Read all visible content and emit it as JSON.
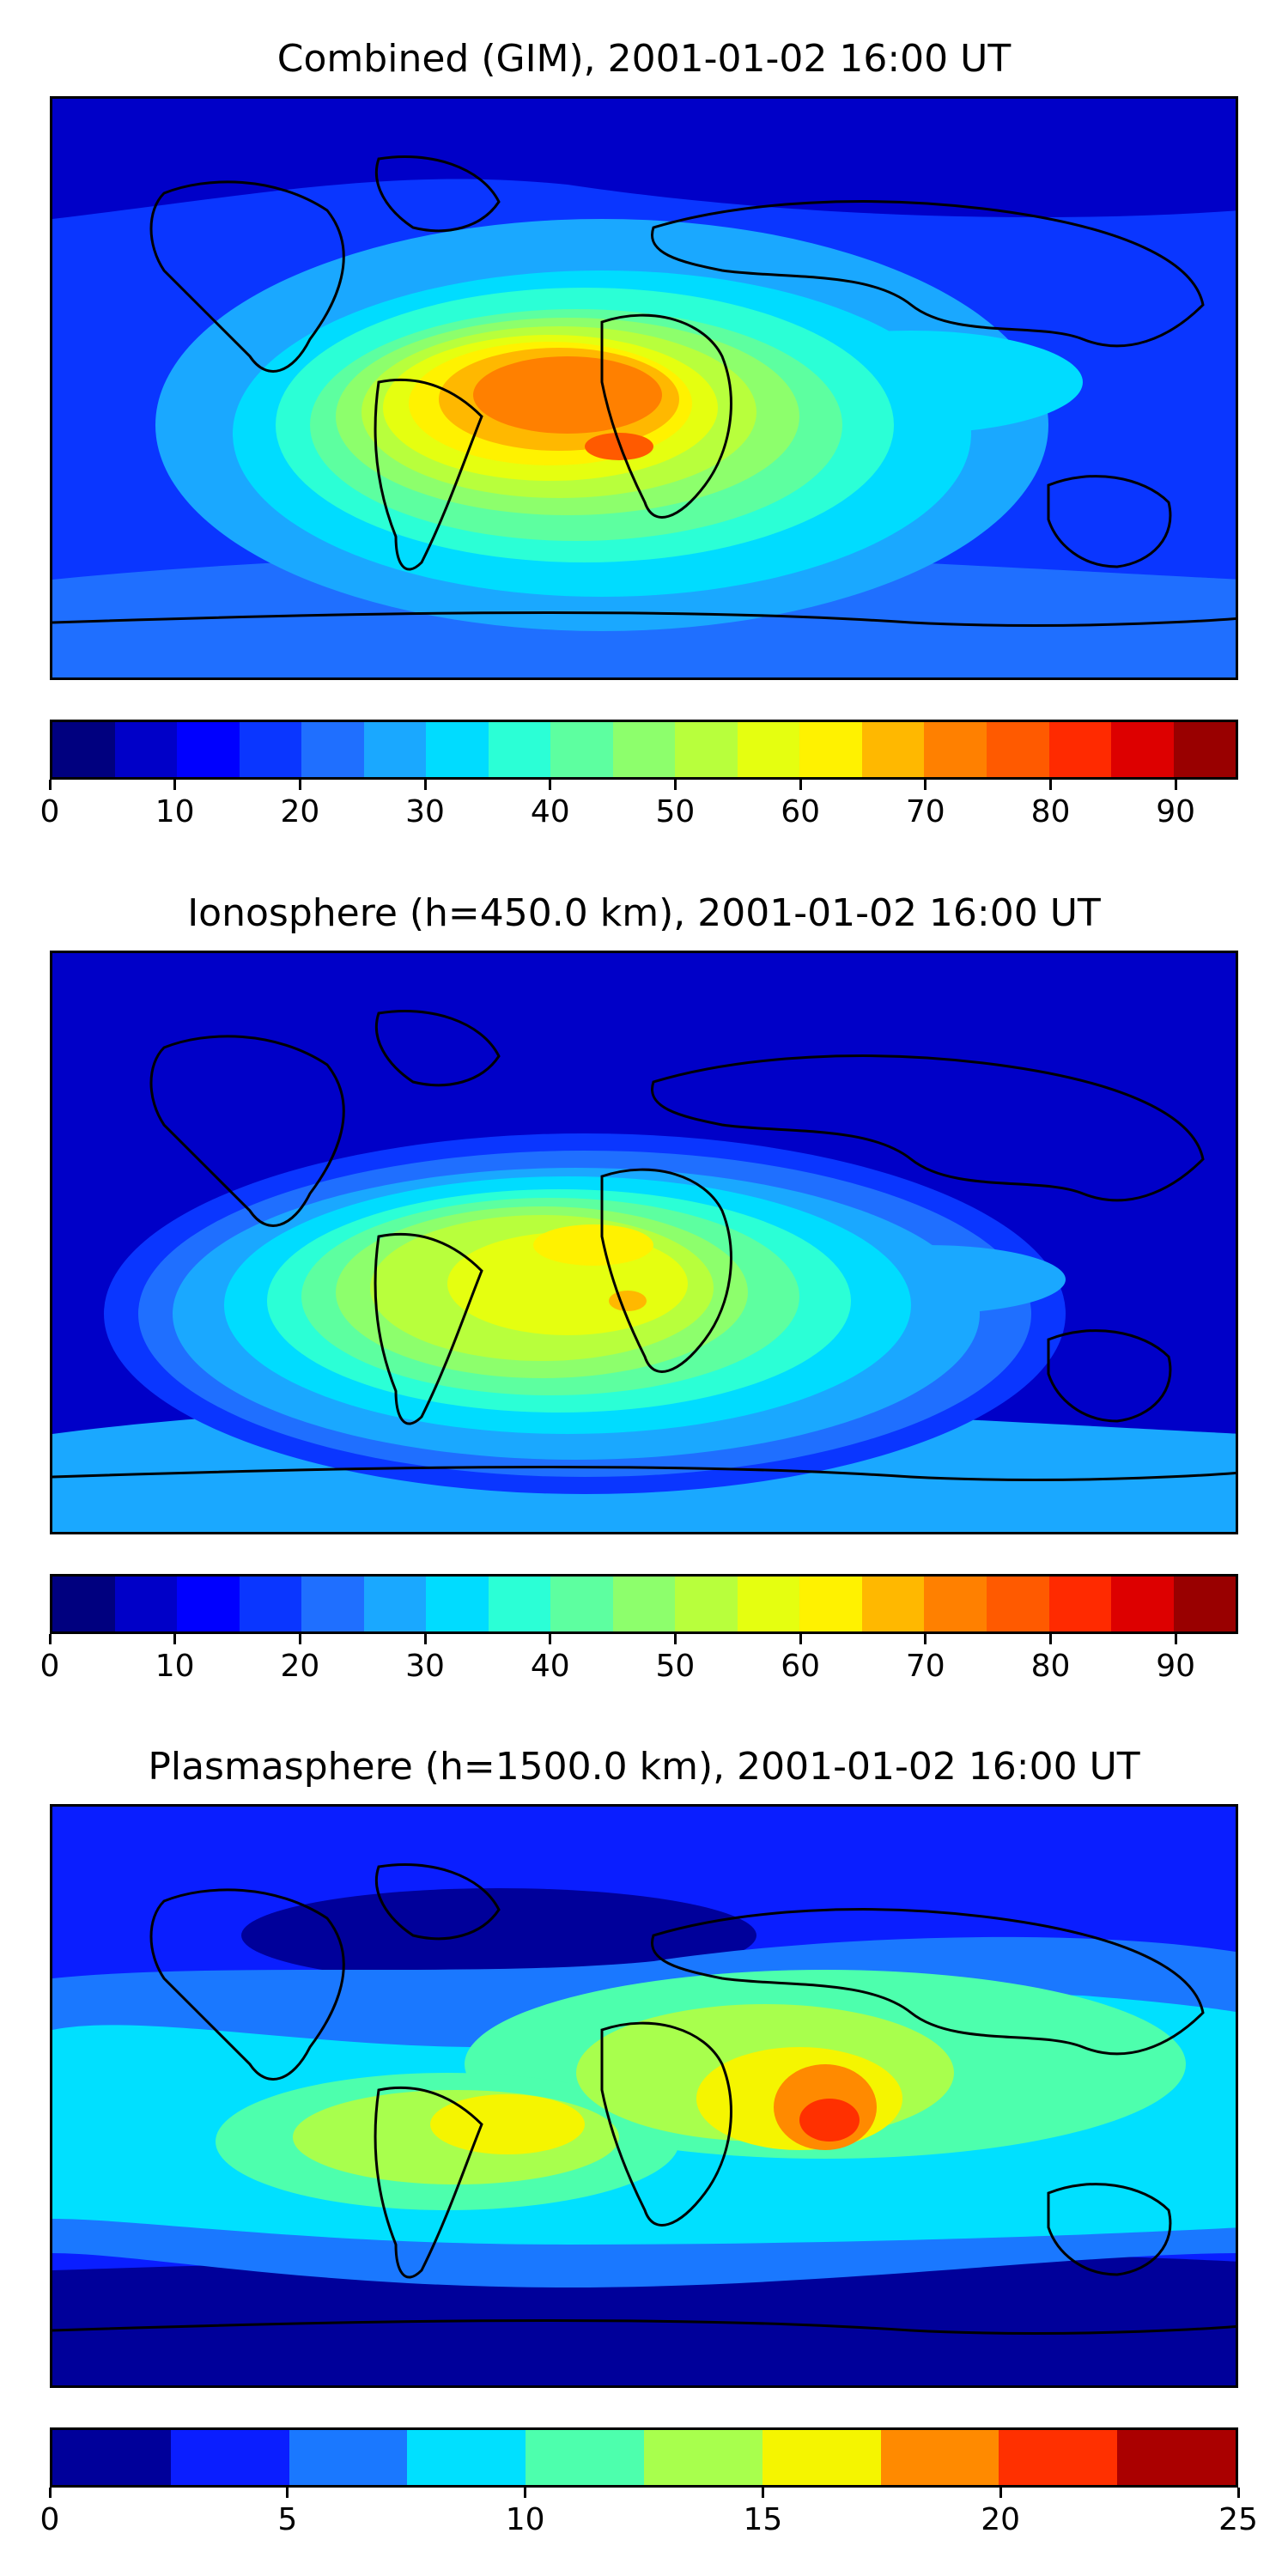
{
  "panels": [
    {
      "id": "combined",
      "title": "Combined (GIM), 2001-01-02 16:00 UT",
      "colorbar": {
        "min": 0,
        "max": 95,
        "step": 5,
        "tick_labels": [
          "0",
          "10",
          "20",
          "30",
          "40",
          "50",
          "60",
          "70",
          "80",
          "90"
        ],
        "tick_values": [
          0,
          10,
          20,
          30,
          40,
          50,
          60,
          70,
          80,
          90
        ],
        "colors": [
          "#00007f",
          "#0000c8",
          "#0000ff",
          "#0a36ff",
          "#1f6fff",
          "#1aa8ff",
          "#00dcff",
          "#2bffd6",
          "#5dffa0",
          "#8dff6c",
          "#b8ff3c",
          "#e5ff10",
          "#fff200",
          "#ffb800",
          "#ff8000",
          "#ff5a00",
          "#ff2a00",
          "#dd0000",
          "#990000"
        ]
      }
    },
    {
      "id": "ionosphere",
      "title": "Ionosphere  (h=450.0 km), 2001-01-02 16:00 UT",
      "colorbar": {
        "min": 0,
        "max": 95,
        "step": 5,
        "tick_labels": [
          "0",
          "10",
          "20",
          "30",
          "40",
          "50",
          "60",
          "70",
          "80",
          "90"
        ],
        "tick_values": [
          0,
          10,
          20,
          30,
          40,
          50,
          60,
          70,
          80,
          90
        ],
        "colors": [
          "#00007f",
          "#0000c8",
          "#0000ff",
          "#0a36ff",
          "#1f6fff",
          "#1aa8ff",
          "#00dcff",
          "#2bffd6",
          "#5dffa0",
          "#8dff6c",
          "#b8ff3c",
          "#e5ff10",
          "#fff200",
          "#ffb800",
          "#ff8000",
          "#ff5a00",
          "#ff2a00",
          "#dd0000",
          "#990000"
        ]
      }
    },
    {
      "id": "plasmasphere",
      "title": "Plasmasphere (h=1500.0 km), 2001-01-02 16:00 UT",
      "colorbar": {
        "min": 0,
        "max": 25,
        "step": 2.5,
        "tick_labels": [
          "0",
          "5",
          "10",
          "15",
          "20",
          "25"
        ],
        "tick_values": [
          0,
          5,
          10,
          15,
          20,
          25
        ],
        "colors": [
          "#00009a",
          "#0a1eff",
          "#1a78ff",
          "#00e0ff",
          "#4dffad",
          "#a8ff4d",
          "#f5f500",
          "#ff8a00",
          "#ff3000",
          "#aa0000"
        ]
      }
    }
  ]
}
